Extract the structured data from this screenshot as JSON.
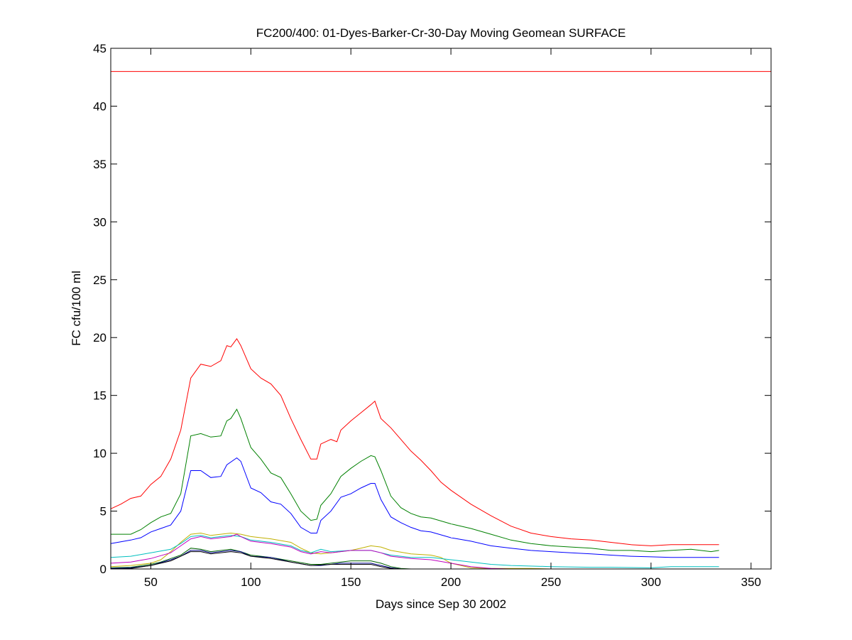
{
  "chart_data": {
    "type": "line",
    "title": "FC200/400: 01-Dyes-Barker-Cr-30-Day Moving Geomean SURFACE",
    "xlabel": "Days since Sep 30 2002",
    "ylabel": "FC cfu/100 ml",
    "xlim": [
      30,
      360
    ],
    "ylim": [
      0,
      45
    ],
    "xticks": [
      50,
      100,
      150,
      200,
      250,
      300,
      350
    ],
    "yticks": [
      0,
      5,
      10,
      15,
      20,
      25,
      30,
      35,
      40,
      45
    ],
    "grid": false,
    "reference_line": {
      "y": 43,
      "color": "#ff0000"
    },
    "series": [
      {
        "color": "#ff0000",
        "x": [
          30,
          35,
          40,
          45,
          50,
          55,
          60,
          65,
          70,
          75,
          80,
          85,
          88,
          90,
          93,
          95,
          100,
          105,
          110,
          115,
          120,
          125,
          130,
          133,
          135,
          140,
          143,
          145,
          150,
          155,
          160,
          162,
          165,
          170,
          175,
          180,
          185,
          190,
          195,
          200,
          210,
          220,
          230,
          240,
          250,
          260,
          270,
          280,
          290,
          300,
          310,
          320,
          334
        ],
        "y": [
          5.2,
          5.6,
          6.1,
          6.3,
          7.3,
          8,
          9.5,
          12,
          16.5,
          17.7,
          17.5,
          18,
          19.3,
          19.2,
          19.9,
          19.3,
          17.3,
          16.5,
          16,
          15,
          13,
          11.2,
          9.5,
          9.5,
          10.8,
          11.2,
          11,
          12,
          12.8,
          13.5,
          14.2,
          14.5,
          13,
          12.2,
          11.2,
          10.2,
          9.4,
          8.5,
          7.5,
          6.8,
          5.6,
          4.6,
          3.7,
          3.1,
          2.8,
          2.6,
          2.5,
          2.3,
          2.1,
          2.0,
          2.1,
          2.1,
          2.1
        ]
      },
      {
        "color": "#008000",
        "x": [
          30,
          40,
          45,
          50,
          55,
          60,
          65,
          70,
          75,
          80,
          85,
          88,
          90,
          93,
          95,
          100,
          105,
          110,
          115,
          120,
          125,
          130,
          133,
          135,
          140,
          145,
          150,
          155,
          160,
          162,
          165,
          170,
          175,
          180,
          185,
          190,
          200,
          210,
          220,
          230,
          240,
          250,
          260,
          270,
          280,
          290,
          300,
          310,
          320,
          330,
          334
        ],
        "y": [
          3.0,
          3.0,
          3.4,
          4,
          4.5,
          4.8,
          6.5,
          11.5,
          11.7,
          11.4,
          11.5,
          12.8,
          13,
          13.8,
          13,
          10.5,
          9.5,
          8.3,
          7.9,
          6.5,
          5,
          4.2,
          4.3,
          5.5,
          6.5,
          8,
          8.7,
          9.3,
          9.8,
          9.7,
          8.5,
          6.3,
          5.3,
          4.8,
          4.5,
          4.4,
          3.9,
          3.5,
          3.0,
          2.5,
          2.2,
          2.0,
          1.9,
          1.8,
          1.6,
          1.6,
          1.5,
          1.6,
          1.7,
          1.5,
          1.6
        ]
      },
      {
        "color": "#0000ff",
        "x": [
          30,
          40,
          45,
          50,
          55,
          60,
          65,
          70,
          75,
          80,
          85,
          88,
          93,
          95,
          100,
          105,
          110,
          115,
          120,
          125,
          130,
          133,
          135,
          140,
          145,
          150,
          155,
          160,
          162,
          165,
          170,
          175,
          180,
          185,
          190,
          200,
          210,
          220,
          230,
          240,
          250,
          260,
          270,
          280,
          290,
          300,
          310,
          334
        ],
        "y": [
          2.2,
          2.5,
          2.7,
          3.2,
          3.5,
          3.8,
          5,
          8.5,
          8.5,
          7.9,
          8,
          9,
          9.6,
          9.3,
          7.0,
          6.6,
          5.8,
          5.6,
          4.8,
          3.6,
          3.1,
          3.1,
          4.2,
          5,
          6.2,
          6.5,
          7,
          7.4,
          7.4,
          6,
          4.5,
          4,
          3.6,
          3.3,
          3.2,
          2.7,
          2.4,
          2.0,
          1.8,
          1.6,
          1.5,
          1.4,
          1.3,
          1.2,
          1.1,
          1.05,
          1.0,
          1.0
        ]
      },
      {
        "color": "#c0b000",
        "x": [
          30,
          40,
          50,
          55,
          60,
          65,
          70,
          75,
          80,
          85,
          90,
          95,
          100,
          110,
          120,
          125,
          130,
          135,
          140,
          150,
          155,
          160,
          165,
          170,
          180,
          190,
          195,
          200,
          210,
          220,
          230,
          240,
          250
        ],
        "y": [
          0.2,
          0.3,
          0.5,
          0.8,
          1.5,
          2.3,
          3.0,
          3.1,
          2.9,
          3.0,
          3.1,
          3.0,
          2.8,
          2.6,
          2.3,
          1.8,
          1.4,
          1.3,
          1.4,
          1.6,
          1.8,
          2.0,
          1.9,
          1.6,
          1.3,
          1.2,
          1.0,
          0.5,
          0.1,
          0.05,
          0.05,
          0.05,
          0.0
        ]
      },
      {
        "color": "#00bfbf",
        "x": [
          30,
          40,
          50,
          60,
          65,
          70,
          75,
          80,
          90,
          95,
          100,
          110,
          120,
          125,
          130,
          135,
          140,
          150,
          160,
          165,
          170,
          180,
          190,
          200,
          210,
          220,
          230,
          250,
          270,
          280,
          300,
          310,
          334
        ],
        "y": [
          1.0,
          1.1,
          1.4,
          1.7,
          2.2,
          2.8,
          2.9,
          2.7,
          2.9,
          2.8,
          2.5,
          2.3,
          2.0,
          1.6,
          1.4,
          1.7,
          1.5,
          1.6,
          1.6,
          1.4,
          1.2,
          1.0,
          1.0,
          0.8,
          0.6,
          0.4,
          0.3,
          0.2,
          0.15,
          0.15,
          0.1,
          0.2,
          0.2
        ]
      },
      {
        "color": "#bf00bf",
        "x": [
          30,
          40,
          50,
          60,
          65,
          70,
          75,
          80,
          90,
          93,
          95,
          100,
          110,
          120,
          125,
          130,
          135,
          140,
          150,
          160,
          165,
          170,
          180,
          190,
          200,
          210,
          220,
          230
        ],
        "y": [
          0.5,
          0.6,
          0.9,
          1.4,
          2.0,
          2.6,
          2.8,
          2.6,
          2.8,
          3.0,
          2.8,
          2.4,
          2.2,
          1.9,
          1.5,
          1.3,
          1.5,
          1.4,
          1.6,
          1.6,
          1.4,
          1.1,
          0.9,
          0.8,
          0.5,
          0.2,
          0.05,
          0.0
        ]
      },
      {
        "color": "#006400",
        "x": [
          30,
          40,
          50,
          55,
          60,
          65,
          70,
          75,
          80,
          90,
          95,
          100,
          110,
          120,
          130,
          135,
          145,
          150,
          160,
          165,
          170,
          175,
          180,
          195
        ],
        "y": [
          0.1,
          0.15,
          0.4,
          0.6,
          0.9,
          1.2,
          1.8,
          1.7,
          1.5,
          1.7,
          1.5,
          1.2,
          1.0,
          0.7,
          0.4,
          0.4,
          0.6,
          0.7,
          0.7,
          0.5,
          0.2,
          0.05,
          0.0,
          0.0
        ]
      },
      {
        "color": "#00008b",
        "x": [
          30,
          40,
          50,
          60,
          65,
          70,
          75,
          80,
          90,
          95,
          100,
          110,
          120,
          130,
          135,
          145,
          150,
          160,
          165,
          170,
          175,
          185
        ],
        "y": [
          0.05,
          0.1,
          0.3,
          0.8,
          1.1,
          1.6,
          1.6,
          1.4,
          1.6,
          1.5,
          1.1,
          1.0,
          0.6,
          0.3,
          0.3,
          0.5,
          0.5,
          0.5,
          0.3,
          0.1,
          0.0,
          0.0
        ]
      },
      {
        "color": "#000000",
        "x": [
          30,
          40,
          50,
          60,
          70,
          75,
          80,
          90,
          95,
          100,
          110,
          120,
          130,
          140,
          150,
          160,
          165,
          170,
          175
        ],
        "y": [
          0.0,
          0.05,
          0.3,
          0.7,
          1.5,
          1.5,
          1.3,
          1.5,
          1.4,
          1.1,
          0.9,
          0.6,
          0.3,
          0.4,
          0.4,
          0.4,
          0.2,
          0.05,
          0
        ]
      }
    ]
  }
}
